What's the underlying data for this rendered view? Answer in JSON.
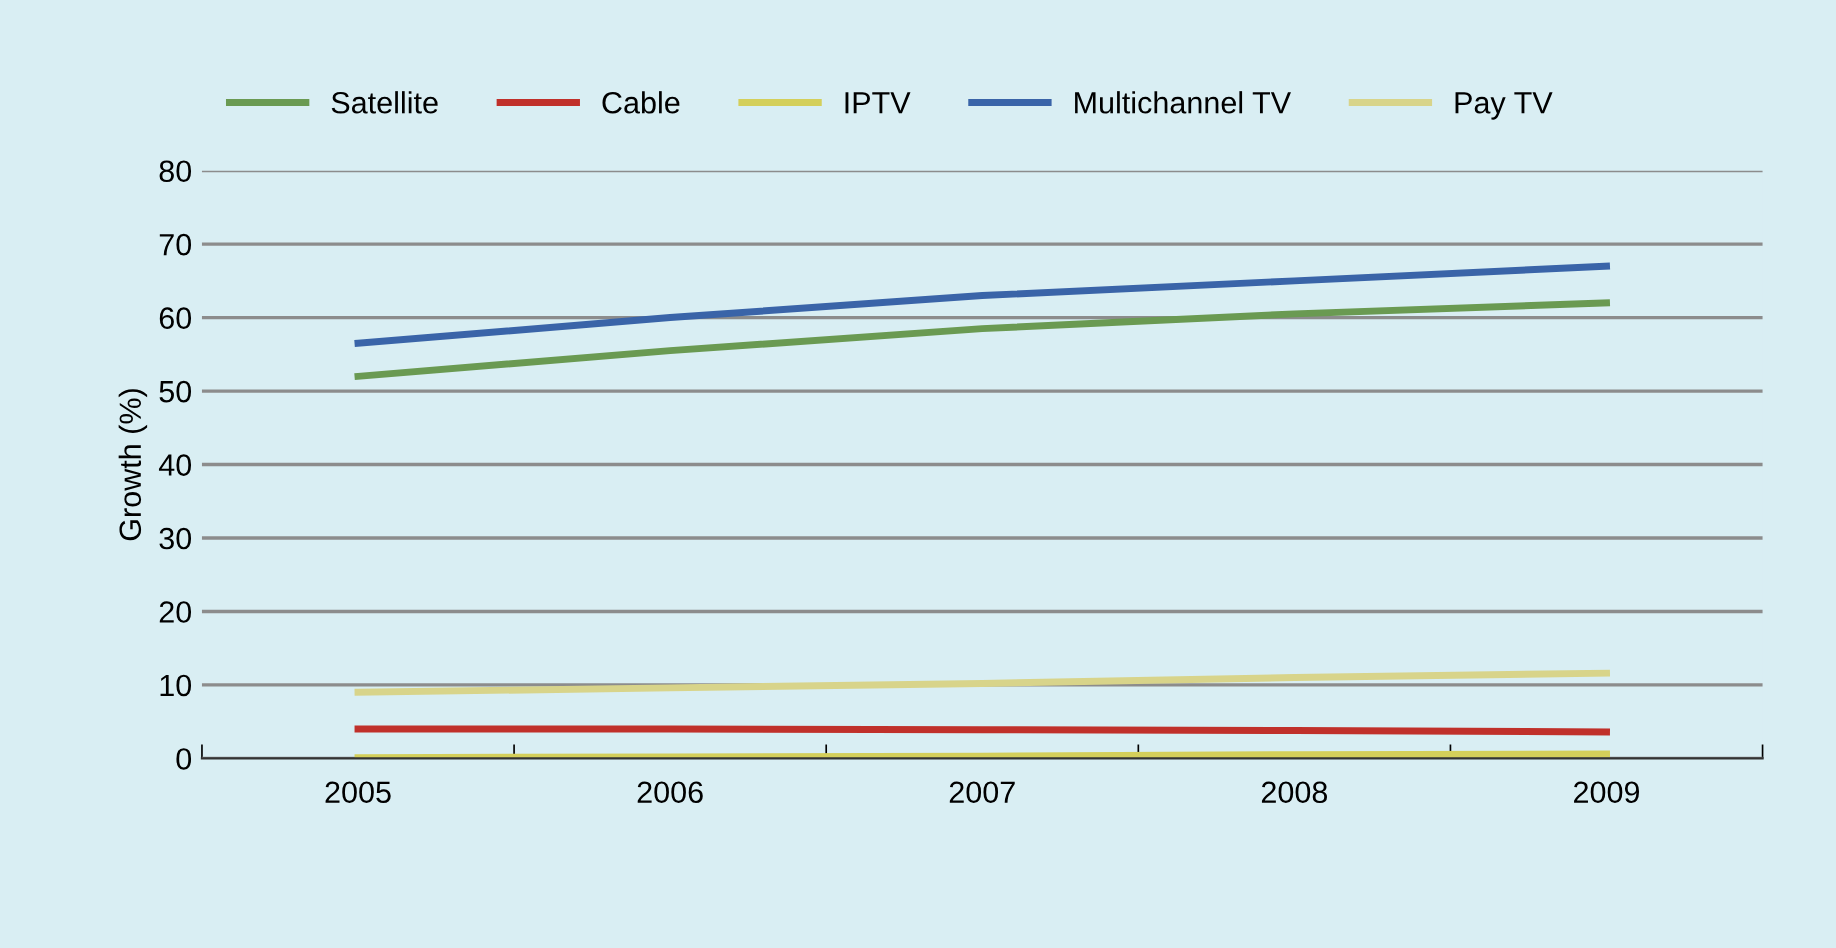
{
  "chart_data": {
    "type": "line",
    "ylabel": "Growth (%)",
    "categories": [
      "2005",
      "2006",
      "2007",
      "2008",
      "2009"
    ],
    "series": [
      {
        "name": "Satellite",
        "color": "#6a9a52",
        "values": [
          52,
          55.5,
          58.5,
          60.5,
          62
        ]
      },
      {
        "name": "Cable",
        "color": "#c0302a",
        "values": [
          4,
          4,
          3.9,
          3.8,
          3.6
        ]
      },
      {
        "name": "IPTV",
        "color": "#d4cf5a",
        "values": [
          0.1,
          0.2,
          0.3,
          0.5,
          0.6
        ]
      },
      {
        "name": "Multichannel TV",
        "color": "#3a64a8",
        "values": [
          56.5,
          60,
          63,
          65,
          67
        ]
      },
      {
        "name": "Pay TV",
        "color": "#d8d48a",
        "values": [
          9,
          9.6,
          10.2,
          11,
          11.6
        ]
      }
    ],
    "ylim": [
      0,
      80
    ],
    "yticks": [
      0,
      10,
      20,
      30,
      40,
      50,
      60,
      70,
      80
    ],
    "grid": "y",
    "legend": "top",
    "line_style": "solid",
    "marker": "none"
  }
}
